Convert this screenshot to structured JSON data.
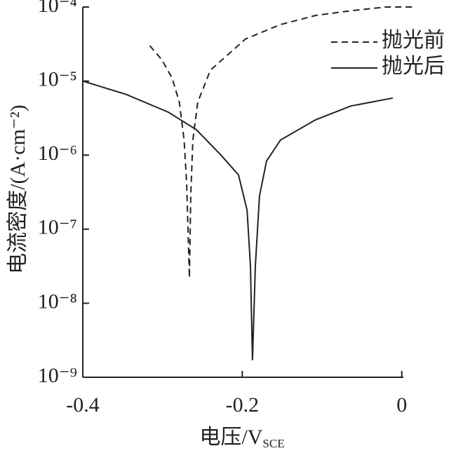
{
  "chart_data": {
    "type": "line",
    "xlabel": {
      "text": "电压/V",
      "subscript": "SCE"
    },
    "ylabel": "电流密度/(A·cm⁻²)",
    "xlim": [
      -0.4,
      0.002
    ],
    "ylim": [
      1e-09,
      0.0001
    ],
    "yscale": "log",
    "xticks": [
      -0.4,
      -0.2,
      0
    ],
    "yticks": [
      {
        "value": 1e-09,
        "label": "10⁻⁹"
      },
      {
        "value": 1e-08,
        "label": "10⁻⁸"
      },
      {
        "value": 1e-07,
        "label": "10⁻⁷"
      },
      {
        "value": 1e-06,
        "label": "10⁻⁶"
      },
      {
        "value": 1e-05,
        "label": "10⁻⁵"
      },
      {
        "value": 0.0001,
        "label": "10⁻⁴"
      }
    ],
    "legend": "upper right",
    "series": [
      {
        "name": "抛光前",
        "color": "#222222",
        "dash": true,
        "x": [
          -0.316,
          -0.301,
          -0.288,
          -0.279,
          -0.273,
          -0.2698,
          -0.268,
          -0.2663,
          -0.2646,
          -0.262,
          -0.2558,
          -0.24,
          -0.196,
          -0.152,
          -0.108,
          -0.064,
          -0.02,
          0.015
        ],
        "values": [
          3e-05,
          1.95e-05,
          1.1e-05,
          5.2e-06,
          1.6e-06,
          4.3e-07,
          9.3e-08,
          2.2e-08,
          2.8e-07,
          1.6e-06,
          5.2e-06,
          1.4e-05,
          3.7e-05,
          5.8e-05,
          7.7e-05,
          8.9e-05,
          0.0001,
          0.0001
        ]
      },
      {
        "name": "抛光后",
        "color": "#222222",
        "dash": false,
        "x": [
          -0.4,
          -0.3455,
          -0.2927,
          -0.2575,
          -0.2267,
          -0.2047,
          -0.194,
          -0.1898,
          -0.1872,
          -0.1836,
          -0.1784,
          -0.1696,
          -0.152,
          -0.108,
          -0.064,
          -0.0113
        ],
        "values": [
          1e-05,
          6.6e-06,
          3.8e-06,
          2.2e-06,
          1e-06,
          5.4e-07,
          1.8e-07,
          3.2e-08,
          1.7e-09,
          3.2e-08,
          2.8e-07,
          8.3e-07,
          1.6e-06,
          3e-06,
          4.6e-06,
          5.9e-06
        ]
      }
    ]
  }
}
